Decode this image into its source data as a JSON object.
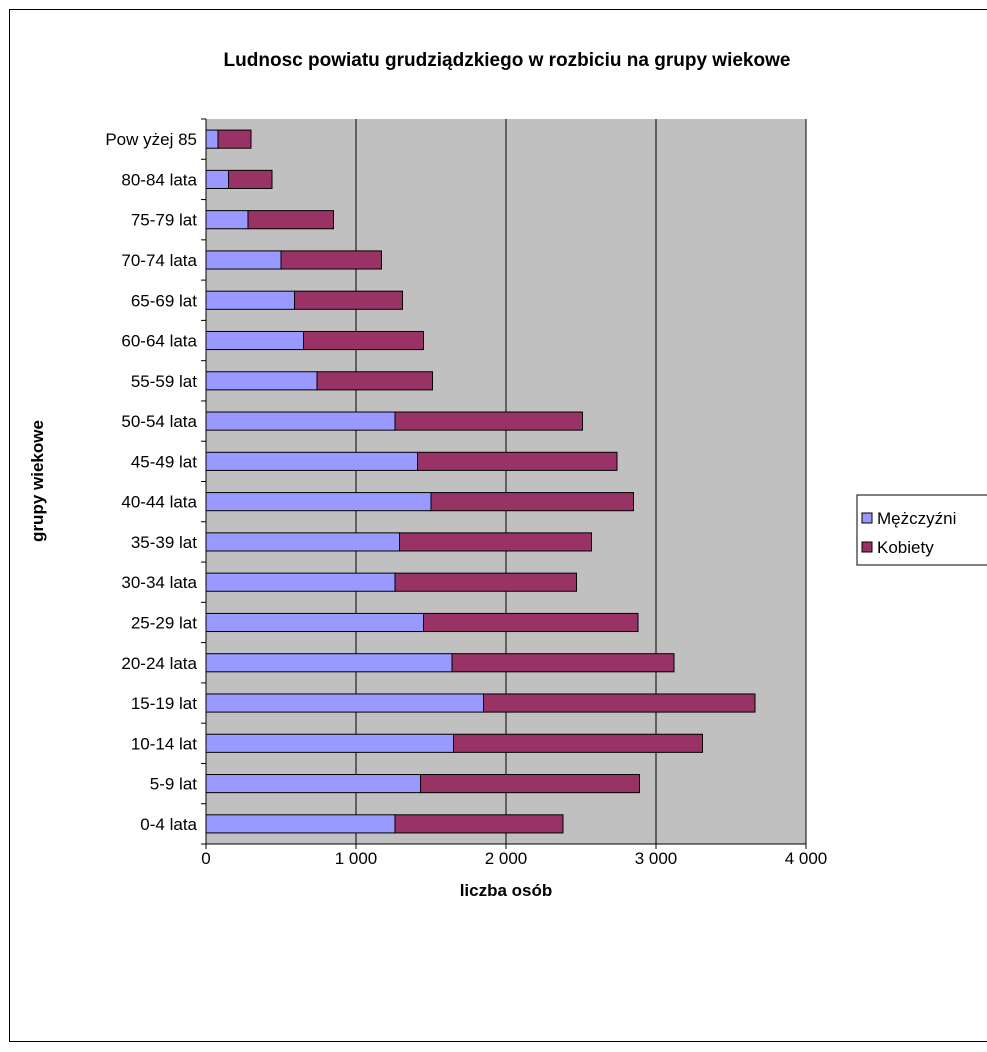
{
  "chart_data": {
    "type": "bar",
    "orientation": "horizontal",
    "stacked": true,
    "title": "Ludnosc powiatu grudziądzkiego w rozbiciu na grupy wiekowe",
    "xlabel": "liczba osób",
    "ylabel": "grupy wiekowe",
    "xlim": [
      0,
      4000
    ],
    "x_ticks": [
      "0",
      "1 000",
      "2 000",
      "3 000",
      "4 000"
    ],
    "x_tick_values": [
      0,
      1000,
      2000,
      3000,
      4000
    ],
    "grid": true,
    "legend_position": "right",
    "plot_background": "#c0c0c0",
    "categories": [
      "0-4 lata",
      "5-9 lat",
      "10-14 lat",
      "15-19 lat",
      "20-24 lata",
      "25-29 lat",
      "30-34 lata",
      "35-39 lat",
      "40-44 lata",
      "45-49 lat",
      "50-54 lata",
      "55-59 lat",
      "60-64 lata",
      "65-69 lat",
      "70-74 lata",
      "75-79 lat",
      "80-84 lata",
      "Pow yżej 85"
    ],
    "series": [
      {
        "name": "Mężczyźni",
        "color": "#9999ff",
        "values": [
          1260,
          1430,
          1650,
          1850,
          1640,
          1450,
          1260,
          1290,
          1500,
          1410,
          1260,
          740,
          650,
          590,
          500,
          280,
          150,
          80
        ]
      },
      {
        "name": "Kobiety",
        "color": "#993366",
        "values": [
          1120,
          1460,
          1660,
          1810,
          1480,
          1430,
          1210,
          1280,
          1350,
          1330,
          1250,
          770,
          800,
          720,
          670,
          570,
          290,
          220
        ]
      }
    ]
  }
}
